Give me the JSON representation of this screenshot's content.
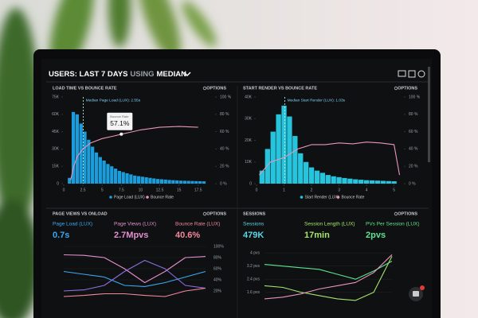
{
  "header": {
    "title": "USERS: LAST 7 DAYS",
    "title_mid": "USING",
    "title_end": "MEDIAN"
  },
  "panels": [
    {
      "title": "LOAD TIME VS BOUNCE RATE",
      "options": "OPTIONS",
      "chart": {
        "type": "histogram",
        "name": "Page Load (LUX)",
        "color": "#1c9ddb",
        "bins": [
          0.5,
          1,
          1.5,
          2,
          2.5,
          3,
          3.5,
          4,
          4.5,
          5,
          5.5,
          6,
          6.5,
          7,
          7.5,
          8,
          8.5,
          9,
          9.5,
          10,
          10.5,
          11,
          11.5,
          12,
          12.5,
          13,
          13.5,
          14,
          14.5,
          15,
          15.5,
          16,
          16.5,
          17,
          17.5,
          18,
          18.5
        ],
        "counts": [
          5,
          62,
          60,
          52,
          45,
          38,
          32,
          27,
          23,
          20,
          17,
          15,
          13,
          11,
          10,
          9,
          8,
          7,
          6.5,
          6,
          5.5,
          5,
          4.5,
          4,
          3.8,
          3.5,
          3.2,
          3,
          2.8,
          2.6,
          2.5,
          2.4,
          2.3,
          2.2,
          2.1,
          2
        ],
        "xlim": [
          0,
          19.5
        ],
        "xticks": [
          0,
          2.5,
          5,
          7.5,
          10,
          12.5,
          15,
          17.5
        ],
        "ylim": [
          0,
          75
        ],
        "yticks": [
          0,
          {
            "value": 15,
            "label": "15K"
          },
          {
            "value": 30,
            "label": "30K"
          },
          {
            "value": 45,
            "label": "45K"
          },
          {
            "value": 60,
            "label": "60K"
          },
          {
            "value": 75,
            "label": "75K"
          }
        ],
        "y2lim": [
          0,
          100
        ],
        "y2ticks": [
          {
            "value": 0,
            "label": "0 %"
          },
          {
            "value": 20,
            "label": "20 %"
          },
          {
            "value": 40,
            "label": "40 %"
          },
          {
            "value": 60,
            "label": "60 %"
          },
          {
            "value": 80,
            "label": "80 %"
          },
          {
            "value": 100,
            "label": "100 %"
          }
        ],
        "series": [
          {
            "name": "Bounce Rate",
            "color": "#e995b9",
            "axis": "y2",
            "x": [
              0.9,
              1.3,
              1.8,
              2.5,
              3.5,
              5,
              6.5,
              7.5,
              9,
              10,
              12.5,
              15,
              17.5
            ],
            "values": [
              4,
              20,
              32,
              40,
              47,
              52,
              55,
              57.1,
              60,
              62,
              65,
              66,
              65
            ]
          }
        ],
        "median": {
          "x": 2.55,
          "label": "Median Page Load (LUX): 2.55s"
        },
        "tooltip": {
          "label": "Bounce Rate",
          "value_label": "57.1%",
          "x": 7.5,
          "value": 57.1
        }
      }
    },
    {
      "title": "START RENDER VS BOUNCE RATE",
      "options": "OPTIONS",
      "chart": {
        "type": "histogram",
        "name": "Start Render (LUX)",
        "color": "#27c4dd",
        "bins": [
          0.1,
          0.3,
          0.5,
          0.7,
          0.9,
          1.1,
          1.3,
          1.5,
          1.7,
          1.9,
          2.1,
          2.3,
          2.5,
          2.7,
          2.9,
          3.1,
          3.3,
          3.5,
          3.7,
          3.9,
          4.1,
          4.3,
          4.5,
          4.7,
          4.9,
          5.1
        ],
        "counts": [
          6,
          16,
          24,
          32,
          36,
          31,
          22,
          14,
          10,
          7.5,
          6,
          5,
          4,
          3.4,
          3,
          2.6,
          2.3,
          2,
          1.8,
          1.6,
          1.5,
          1.4,
          1.3,
          1.2,
          1.1
        ],
        "xlim": [
          0,
          5.3
        ],
        "xticks": [
          0,
          1,
          2,
          3,
          4,
          5
        ],
        "ylim": [
          0,
          40
        ],
        "yticks": [
          0,
          {
            "value": 10,
            "label": "10K"
          },
          {
            "value": 20,
            "label": "20K"
          },
          {
            "value": 30,
            "label": "30K"
          },
          {
            "value": 40,
            "label": "40K"
          }
        ],
        "y2lim": [
          0,
          100
        ],
        "y2ticks": [
          {
            "value": 0,
            "label": "0 %"
          },
          {
            "value": 20,
            "label": "20 %"
          },
          {
            "value": 40,
            "label": "40 %"
          },
          {
            "value": 60,
            "label": "60 %"
          },
          {
            "value": 80,
            "label": "80 %"
          },
          {
            "value": 100,
            "label": "100 %"
          }
        ],
        "series": [
          {
            "name": "Bounce Rate",
            "color": "#e995b9",
            "axis": "y2",
            "x": [
              0.1,
              0.5,
              1,
              1.5,
              2,
              2.5,
              3,
              3.5,
              4,
              4.5,
              5,
              5.2
            ],
            "values": [
              10,
              25,
              30,
              40,
              45,
              45,
              47,
              46,
              48,
              47,
              45,
              10
            ]
          }
        ],
        "median": {
          "x": 1.03,
          "label": "Median Start Render (LUX): 1.03s"
        }
      }
    },
    {
      "title": "PAGE VIEWS VS ONLOAD",
      "options": "OPTIONS",
      "stats": [
        {
          "label": "Page Load (LUX)",
          "value": "0.7s",
          "color": "#3aa9f2"
        },
        {
          "label": "Page Views (LUX)",
          "value": "2.7Mpvs",
          "color": "#e28fd0"
        },
        {
          "label": "Bounce Rate (LUX)",
          "value": "40.6%",
          "color": "#f2899c"
        }
      ],
      "chart": {
        "type": "line",
        "grid": true,
        "ylim": [
          0,
          100
        ],
        "yticks": [
          {
            "value": 20,
            "label": "20%"
          },
          {
            "value": 40,
            "label": "40%"
          },
          {
            "value": 60,
            "label": "60%"
          },
          {
            "value": 80,
            "label": "80%"
          },
          {
            "value": 100,
            "label": "100%"
          }
        ],
        "series": [
          {
            "color": "#3aa9f2",
            "values": [
              55,
              50,
              45,
              30,
              28,
              35,
              45,
              55
            ]
          },
          {
            "color": "#e28fd0",
            "values": [
              85,
              84,
              80,
              60,
              35,
              55,
              80,
              82
            ]
          },
          {
            "color": "#8d6fe0",
            "values": [
              20,
              22,
              30,
              55,
              75,
              60,
              30,
              25
            ]
          },
          {
            "color": "#f2899c",
            "values": [
              10,
              12,
              15,
              15,
              12,
              10,
              20,
              25
            ]
          }
        ]
      }
    },
    {
      "title": "SESSIONS",
      "options": "OPTIONS",
      "stats": [
        {
          "label": "Sessions",
          "value": "479K",
          "color": "#5ad6e6"
        },
        {
          "label": "Session Length (LUX)",
          "value": "17min",
          "color": "#a6e46e"
        },
        {
          "label": "PVs Per Session (LUX)",
          "value": "2pvs",
          "color": "#5ee38f"
        }
      ],
      "chart": {
        "type": "line",
        "grid": true,
        "ylim": [
          1,
          4.4
        ],
        "yticks": [
          {
            "value": 1.6,
            "label": "1.6 pvs"
          },
          {
            "value": 2.4,
            "label": "2.4 pvs"
          },
          {
            "value": 3.2,
            "label": "3.2 pvs"
          },
          {
            "value": 4,
            "label": "4 pvs"
          }
        ],
        "series": [
          {
            "color": "#5ee38f",
            "values": [
              3.3,
              3.2,
              3.1,
              3,
              2.7,
              2.4,
              2.9,
              3.5
            ]
          },
          {
            "color": "#a6e46e",
            "values": [
              2,
              1.9,
              1.6,
              1.4,
              1.2,
              1.1,
              1.6,
              3.8
            ]
          },
          {
            "color": "#e995b9",
            "values": [
              1.2,
              1.3,
              1.5,
              1.8,
              2,
              2.2,
              2.8,
              3.9
            ]
          }
        ]
      }
    }
  ]
}
